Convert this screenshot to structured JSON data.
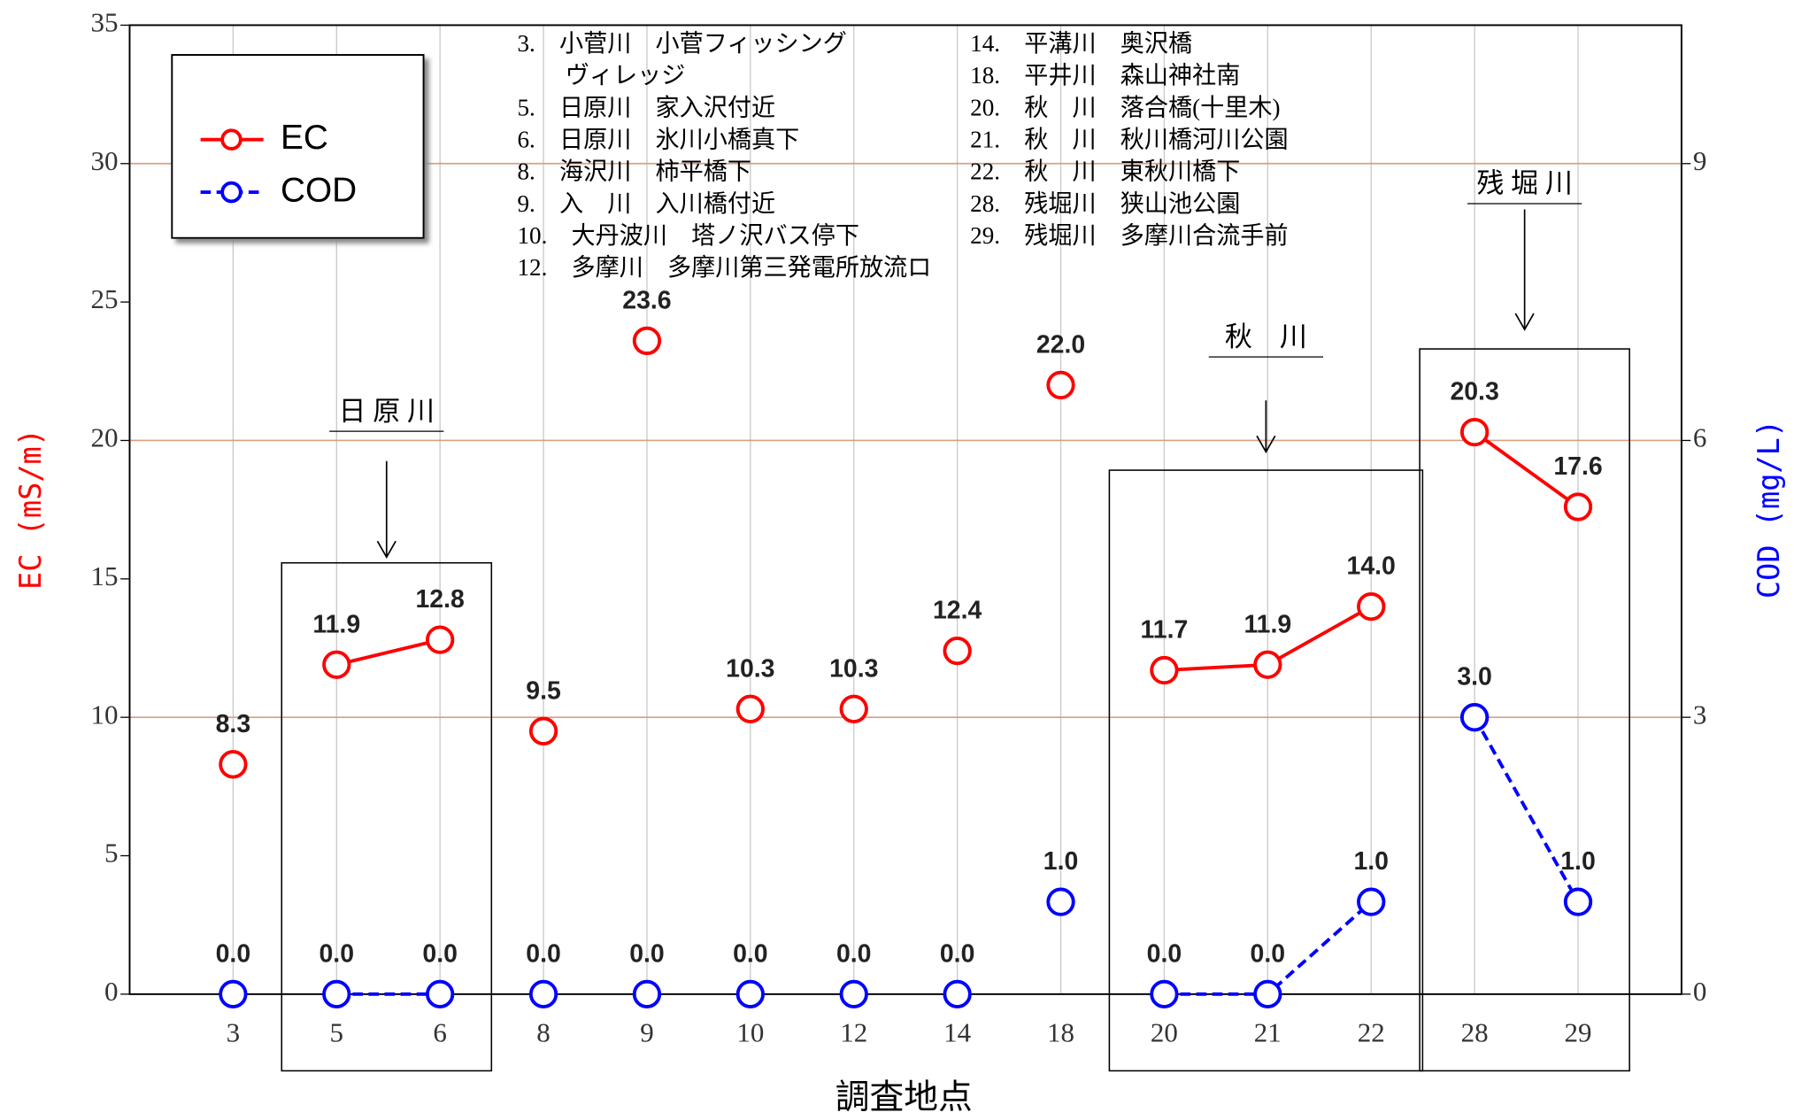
{
  "chart_data": {
    "type": "line",
    "xlabel": "調査地点",
    "ylabel": "EC (mS/m)",
    "y2label": "COD (mg/L)",
    "categories": [
      "3",
      "5",
      "6",
      "8",
      "9",
      "10",
      "12",
      "14",
      "18",
      "20",
      "21",
      "22",
      "28",
      "29"
    ],
    "series": [
      {
        "name": "EC",
        "color": "#ff0000",
        "dash": false,
        "values": [
          8.3,
          11.9,
          12.8,
          9.5,
          23.6,
          10.3,
          10.3,
          12.4,
          22.0,
          11.7,
          11.9,
          14.0,
          20.3,
          17.6
        ],
        "value_labels": [
          "8.3",
          "11.9",
          "12.8",
          "9.5",
          "23.6",
          "10.3",
          "10.3",
          "12.4",
          "22.0",
          "11.7",
          "11.9",
          "14.0",
          "20.3",
          "17.6"
        ]
      },
      {
        "name": "COD",
        "color": "#0000ff",
        "dash": true,
        "axis": "y2",
        "values": [
          0,
          0,
          0,
          0,
          0,
          0,
          0,
          0,
          1,
          0,
          0,
          1,
          3,
          1
        ],
        "value_labels": [
          "0.0",
          "0.0",
          "0.0",
          "0.0",
          "0.0",
          "0.0",
          "0.0",
          "0.0",
          "1.0",
          "0.0",
          "0.0",
          "1.0",
          "3.0",
          "1.0"
        ]
      }
    ],
    "ylim": [
      0,
      35
    ],
    "yticks": [
      0,
      5,
      10,
      15,
      20,
      25,
      30,
      35
    ],
    "y2lim": [
      0,
      10.5
    ],
    "y2ticks": [
      0,
      3,
      6,
      9
    ],
    "grid": true,
    "legend": "upper left",
    "groups": [
      {
        "label": "日 原 川",
        "from": "5",
        "to": "6"
      },
      {
        "label": "秋　川",
        "from": "20",
        "to": "22"
      },
      {
        "label": "残 堀 川",
        "from": "28",
        "to": "29"
      }
    ],
    "notes": [
      [
        "3.　小菅川　小菅フィッシング",
        "　　ヴィレッジ",
        "5.　日原川　家入沢付近",
        "6.　日原川　氷川小橋真下",
        "8.　海沢川　柿平橋下",
        "9.　入　川　入川橋付近",
        "10.　大丹波川　塔ノ沢バス停下",
        "12.　多摩川　多摩川第三発電所放流ロ"
      ],
      [
        "14.　平溝川　奥沢橋",
        "18.　平井川　森山神社南",
        "20.　秋　川　落合橋(十里木)",
        "21.　秋　川　秋川橋河川公園",
        "22.　秋　川　東秋川橋下",
        "28.　残堀川　狭山池公園",
        "29.　残堀川　多摩川合流手前"
      ]
    ]
  }
}
